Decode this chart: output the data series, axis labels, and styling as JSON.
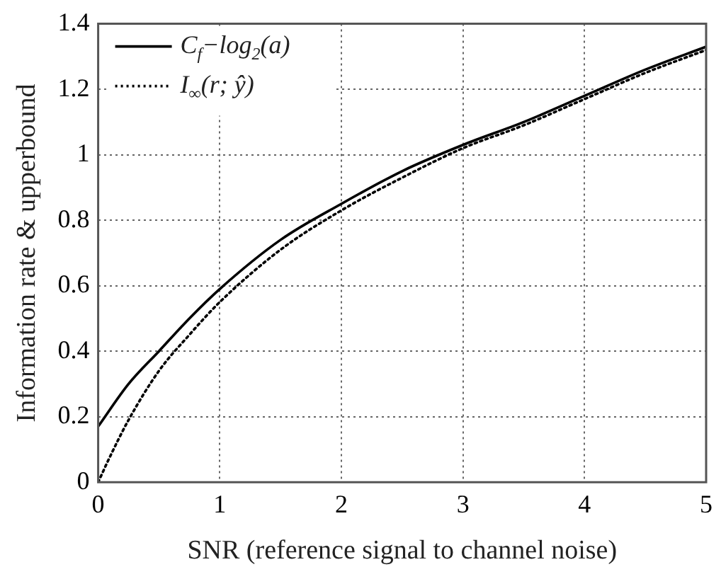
{
  "chart_data": {
    "type": "line",
    "xlabel": "SNR (reference signal to channel noise)",
    "ylabel": "Information rate & upperbound",
    "xlim": [
      0,
      5
    ],
    "xticks": [
      0,
      1,
      2,
      3,
      4,
      5
    ],
    "ylim": [
      0,
      1.4
    ],
    "yticks": [
      0,
      0.2,
      0.4,
      0.6,
      0.8,
      1,
      1.2,
      1.4
    ],
    "grid": true,
    "legend": "top left",
    "marker": "none",
    "series": [
      {
        "name": "C$_{f}$−log$_{2}$(a)",
        "color": "#000000",
        "line_style": "solid",
        "x": [
          0,
          0.25,
          0.5,
          0.75,
          1,
          1.5,
          2,
          2.5,
          3,
          3.5,
          4,
          4.5,
          5
        ],
        "values": [
          0.17,
          0.3,
          0.4,
          0.5,
          0.59,
          0.74,
          0.85,
          0.95,
          1.03,
          1.1,
          1.18,
          1.26,
          1.33
        ]
      },
      {
        "name": "I$_{∞}$(r; ŷ)",
        "color": "#000000",
        "line_style": "dotted",
        "x": [
          0,
          0.1,
          0.25,
          0.5,
          0.75,
          1,
          1.5,
          2,
          2.5,
          3,
          3.5,
          4,
          4.5,
          5
        ],
        "values": [
          0,
          0.08,
          0.19,
          0.34,
          0.45,
          0.55,
          0.71,
          0.83,
          0.93,
          1.02,
          1.09,
          1.17,
          1.25,
          1.32
        ]
      }
    ]
  }
}
